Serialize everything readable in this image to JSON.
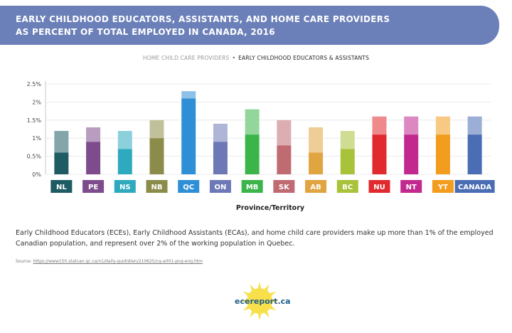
{
  "header": {
    "title_line1": "EARLY CHILDHOOD EDUCATORS, ASSISTANTS, AND HOME CARE PROVIDERS",
    "title_line2": "AS PERCENT OF TOTAL EMPLOYED IN CANADA, 2016"
  },
  "legend": {
    "home": "HOME CHILD CARE PROVIDERS",
    "separator": "•",
    "ece": "EARLY CHILDHOOD EDUCATORS & ASSISTANTS"
  },
  "chart_data": {
    "type": "bar",
    "stacked": true,
    "categories": [
      "NL",
      "PE",
      "NS",
      "NB",
      "QC",
      "ON",
      "MB",
      "SK",
      "AB",
      "BC",
      "NU",
      "NT",
      "YT",
      "CANADA"
    ],
    "series": [
      {
        "name": "EARLY CHILDHOOD EDUCATORS & ASSISTANTS",
        "values": [
          0.6,
          0.9,
          0.7,
          1.0,
          2.1,
          0.9,
          1.1,
          0.8,
          0.6,
          0.7,
          1.1,
          1.1,
          1.1,
          1.1
        ]
      },
      {
        "name": "HOME CHILD CARE PROVIDERS",
        "values": [
          0.6,
          0.4,
          0.5,
          0.5,
          0.2,
          0.5,
          0.7,
          0.7,
          0.7,
          0.5,
          0.5,
          0.5,
          0.5,
          0.5
        ]
      }
    ],
    "colors": [
      "#1f5b63",
      "#7e4c8c",
      "#2eaabf",
      "#8c8c4a",
      "#2f8fd6",
      "#6c79b6",
      "#3bb54a",
      "#c06a72",
      "#e0a441",
      "#a8c23a",
      "#e02a2e",
      "#c2298f",
      "#f29d1e",
      "#4a6db4"
    ],
    "ylim": [
      0,
      2.5
    ],
    "yticks": [
      "0%",
      "0.5%",
      "1%",
      "1.5%",
      "2%",
      "2.5%"
    ],
    "xlabel": "Province/Territory",
    "ylabel": "",
    "grid": true
  },
  "description": "Early Childhood Educators (ECEs), Early Childhood Assistants (ECAs), and home child care providers make up more than 1% of the employed Canadian population, and represent over 2% of the working population in Quebec.",
  "source": {
    "label": "Source:",
    "url": "https://www150.statcan.gc.ca/n1/daily-quotidien/210625/cg-a001-png-eng.htm"
  },
  "logo": {
    "text": "ecereport.ca",
    "sun_color": "#f7e04a",
    "text_color": "#1f5f8b"
  }
}
